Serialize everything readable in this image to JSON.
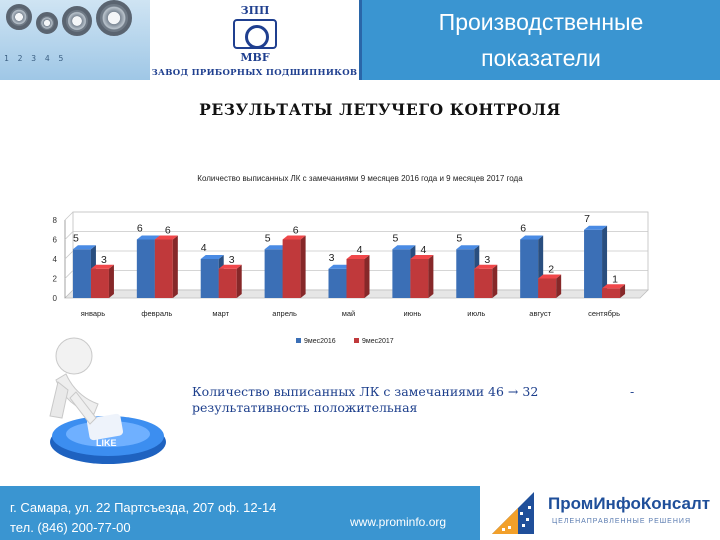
{
  "header": {
    "title_line1": "Производственные",
    "title_line2": "показатели",
    "logo_line1": "ЗПП",
    "logo_line2": "MBF",
    "logo_caption": "ЗАВОД ПРИБОРНЫХ ПОДШИПНИКОВ",
    "ruler_marks": "1   2   3   4   5"
  },
  "subtitle": "РЕЗУЛЬТАТЫ ЛЕТУЧЕГО КОНТРОЛЯ",
  "chart_data": {
    "type": "bar",
    "title": "Количество выписанных ЛК с замечаниями 9 месяцев 2016 года и 9 месяцев 2017 года",
    "categories": [
      "январь",
      "февраль",
      "март",
      "апрель",
      "май",
      "июнь",
      "июль",
      "август",
      "сентябрь"
    ],
    "series": [
      {
        "name": "9мес2016",
        "values": [
          5,
          6,
          4,
          5,
          3,
          5,
          5,
          6,
          7
        ],
        "color": "#3b6fb6"
      },
      {
        "name": "9мес2017",
        "values": [
          3,
          6,
          3,
          6,
          4,
          4,
          3,
          2,
          1
        ],
        "color": "#c0393b"
      }
    ],
    "yticks": [
      "0",
      "2",
      "4",
      "6",
      "8"
    ],
    "ylim": [
      0,
      8
    ],
    "legend_position": "bottom",
    "grid": true
  },
  "note": {
    "text": "Количество выписанных  ЛК с замечаниями  46 → 32",
    "dash": "-",
    "line2": "результативность положительная"
  },
  "figure_button_label": "LIKE",
  "footer": {
    "address": "г. Самара, ул. 22 Партсъезда, 207 оф. 12-14",
    "phone": "тел. (846) 200-77-00",
    "website": "www.prominfo.org",
    "company": "ПромИнфоКонсалт",
    "tagline": "ЦЕЛЕНАПРАВЛЕННЫЕ РЕШЕНИЯ"
  }
}
